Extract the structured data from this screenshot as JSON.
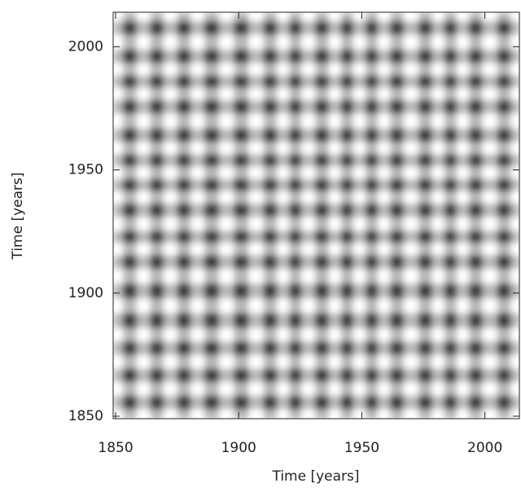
{
  "chart_data": {
    "type": "heatmap",
    "x_label": "Time [years]",
    "y_label": "Time [years]",
    "x": [
      1850,
      1856,
      1861,
      1867,
      1872,
      1878,
      1883,
      1889,
      1895,
      1901,
      1907,
      1913,
      1918,
      1923,
      1928,
      1934,
      1939,
      1944,
      1949,
      1954,
      1959,
      1964,
      1970,
      1976,
      1981,
      1986,
      1991,
      1996,
      2002,
      2008,
      2013
    ],
    "y": [
      1850,
      1856,
      1861,
      1867,
      1872,
      1878,
      1883,
      1889,
      1895,
      1901,
      1907,
      1913,
      1918,
      1923,
      1928,
      1934,
      1939,
      1944,
      1949,
      1954,
      1959,
      1964,
      1970,
      1976,
      1981,
      1986,
      1991,
      1996,
      2002,
      2008,
      2013
    ],
    "values": [
      [
        0,
        3,
        0,
        3,
        0,
        3,
        0,
        3,
        0,
        3,
        0,
        3,
        0,
        3,
        0,
        3,
        0,
        3,
        0,
        3,
        0,
        3,
        0,
        3,
        0,
        3,
        0,
        3,
        0,
        3,
        0
      ],
      [
        3,
        8,
        3,
        8,
        3,
        8,
        3,
        8,
        3,
        8,
        3,
        8,
        3,
        8,
        3,
        8,
        3,
        8,
        3,
        8,
        3,
        8,
        3,
        8,
        3,
        8,
        3,
        8,
        3,
        8,
        3
      ],
      [
        0,
        3,
        0,
        3,
        0,
        3,
        0,
        3,
        0,
        3,
        0,
        3,
        0,
        3,
        0,
        3,
        0,
        3,
        0,
        3,
        0,
        3,
        0,
        3,
        0,
        3,
        0,
        3,
        0,
        3,
        0
      ],
      [
        3,
        8,
        3,
        8,
        3,
        8,
        3,
        8,
        3,
        8,
        3,
        8,
        3,
        8,
        3,
        8,
        3,
        8,
        3,
        8,
        3,
        8,
        3,
        8,
        3,
        8,
        3,
        8,
        3,
        8,
        3
      ],
      [
        0,
        3,
        0,
        3,
        0,
        3,
        0,
        3,
        0,
        3,
        0,
        3,
        0,
        3,
        0,
        3,
        0,
        3,
        0,
        3,
        0,
        3,
        0,
        3,
        0,
        3,
        0,
        3,
        0,
        3,
        0
      ],
      [
        3,
        8,
        3,
        8,
        3,
        8,
        3,
        8,
        3,
        8,
        3,
        8,
        3,
        8,
        3,
        8,
        3,
        8,
        3,
        8,
        3,
        8,
        3,
        8,
        3,
        8,
        3,
        8,
        3,
        8,
        3
      ],
      [
        0,
        3,
        0,
        3,
        0,
        3,
        0,
        3,
        0,
        3,
        0,
        3,
        0,
        3,
        0,
        3,
        0,
        3,
        0,
        3,
        0,
        3,
        0,
        3,
        0,
        3,
        0,
        3,
        0,
        3,
        0
      ],
      [
        3,
        8,
        3,
        8,
        3,
        8,
        3,
        8,
        3,
        8,
        3,
        8,
        3,
        8,
        3,
        8,
        3,
        8,
        3,
        8,
        3,
        8,
        3,
        8,
        3,
        8,
        3,
        8,
        3,
        8,
        3
      ],
      [
        0,
        3,
        0,
        3,
        0,
        3,
        0,
        3,
        0,
        3,
        0,
        3,
        0,
        3,
        0,
        3,
        0,
        3,
        0,
        3,
        0,
        3,
        0,
        3,
        0,
        3,
        0,
        3,
        0,
        3,
        0
      ],
      [
        3,
        8,
        3,
        8,
        3,
        8,
        3,
        8,
        3,
        8,
        3,
        8,
        3,
        8,
        3,
        8,
        3,
        8,
        3,
        8,
        3,
        8,
        3,
        8,
        3,
        8,
        3,
        8,
        3,
        8,
        3
      ],
      [
        0,
        3,
        0,
        3,
        0,
        3,
        0,
        3,
        0,
        3,
        0,
        3,
        0,
        3,
        0,
        3,
        0,
        3,
        0,
        3,
        0,
        3,
        0,
        3,
        0,
        3,
        0,
        3,
        0,
        3,
        0
      ],
      [
        3,
        8,
        3,
        8,
        3,
        8,
        3,
        8,
        3,
        8,
        3,
        8,
        3,
        8,
        3,
        8,
        3,
        8,
        3,
        8,
        3,
        8,
        3,
        8,
        3,
        8,
        3,
        8,
        3,
        8,
        3
      ],
      [
        0,
        3,
        0,
        3,
        0,
        3,
        0,
        3,
        0,
        3,
        0,
        3,
        0,
        3,
        0,
        3,
        0,
        3,
        0,
        3,
        0,
        3,
        0,
        3,
        0,
        3,
        0,
        3,
        0,
        3,
        0
      ],
      [
        3,
        8,
        3,
        8,
        3,
        8,
        3,
        8,
        3,
        8,
        3,
        8,
        3,
        8,
        3,
        8,
        3,
        8,
        3,
        8,
        3,
        8,
        3,
        8,
        3,
        8,
        3,
        8,
        3,
        8,
        3
      ],
      [
        0,
        3,
        0,
        3,
        0,
        3,
        0,
        3,
        0,
        3,
        0,
        3,
        0,
        3,
        0,
        3,
        0,
        3,
        0,
        3,
        0,
        3,
        0,
        3,
        0,
        3,
        0,
        3,
        0,
        3,
        0
      ],
      [
        3,
        8,
        3,
        8,
        3,
        8,
        3,
        8,
        3,
        8,
        3,
        8,
        3,
        8,
        3,
        8,
        3,
        8,
        3,
        8,
        3,
        8,
        3,
        8,
        3,
        8,
        3,
        8,
        3,
        8,
        3
      ],
      [
        0,
        3,
        0,
        3,
        0,
        3,
        0,
        3,
        0,
        3,
        0,
        3,
        0,
        3,
        0,
        3,
        0,
        3,
        0,
        3,
        0,
        3,
        0,
        3,
        0,
        3,
        0,
        3,
        0,
        3,
        0
      ],
      [
        3,
        8,
        3,
        8,
        3,
        8,
        3,
        8,
        3,
        8,
        3,
        8,
        3,
        8,
        3,
        8,
        3,
        8,
        3,
        8,
        3,
        8,
        3,
        8,
        3,
        8,
        3,
        8,
        3,
        8,
        3
      ],
      [
        0,
        3,
        0,
        3,
        0,
        3,
        0,
        3,
        0,
        3,
        0,
        3,
        0,
        3,
        0,
        3,
        0,
        3,
        0,
        3,
        0,
        3,
        0,
        3,
        0,
        3,
        0,
        3,
        0,
        3,
        0
      ],
      [
        3,
        8,
        3,
        8,
        3,
        8,
        3,
        8,
        3,
        8,
        3,
        8,
        3,
        8,
        3,
        8,
        3,
        8,
        3,
        8,
        3,
        8,
        3,
        8,
        3,
        8,
        3,
        8,
        3,
        8,
        3
      ],
      [
        0,
        3,
        0,
        3,
        0,
        3,
        0,
        3,
        0,
        3,
        0,
        3,
        0,
        3,
        0,
        3,
        0,
        3,
        0,
        3,
        0,
        3,
        0,
        3,
        0,
        3,
        0,
        3,
        0,
        3,
        0
      ],
      [
        3,
        8,
        3,
        8,
        3,
        8,
        3,
        8,
        3,
        8,
        3,
        8,
        3,
        8,
        3,
        8,
        3,
        8,
        3,
        8,
        3,
        8,
        3,
        8,
        3,
        8,
        3,
        8,
        3,
        8,
        3
      ],
      [
        0,
        3,
        0,
        3,
        0,
        3,
        0,
        3,
        0,
        3,
        0,
        3,
        0,
        3,
        0,
        3,
        0,
        3,
        0,
        3,
        0,
        3,
        0,
        3,
        0,
        3,
        0,
        3,
        0,
        3,
        0
      ],
      [
        3,
        8,
        3,
        8,
        3,
        8,
        3,
        8,
        3,
        8,
        3,
        8,
        3,
        8,
        3,
        8,
        3,
        8,
        3,
        8,
        3,
        8,
        3,
        8,
        3,
        8,
        3,
        8,
        3,
        8,
        3
      ],
      [
        0,
        3,
        0,
        3,
        0,
        3,
        0,
        3,
        0,
        3,
        0,
        3,
        0,
        3,
        0,
        3,
        0,
        3,
        0,
        3,
        0,
        3,
        0,
        3,
        0,
        3,
        0,
        3,
        0,
        3,
        0
      ],
      [
        3,
        8,
        3,
        8,
        3,
        8,
        3,
        8,
        3,
        8,
        3,
        8,
        3,
        8,
        3,
        8,
        3,
        8,
        3,
        8,
        3,
        8,
        3,
        8,
        3,
        8,
        3,
        8,
        3,
        8,
        3
      ],
      [
        0,
        3,
        0,
        3,
        0,
        3,
        0,
        3,
        0,
        3,
        0,
        3,
        0,
        3,
        0,
        3,
        0,
        3,
        0,
        3,
        0,
        3,
        0,
        3,
        0,
        3,
        0,
        3,
        0,
        3,
        0
      ],
      [
        3,
        8,
        3,
        8,
        3,
        8,
        3,
        8,
        3,
        8,
        3,
        8,
        3,
        8,
        3,
        8,
        3,
        8,
        3,
        8,
        3,
        8,
        3,
        8,
        3,
        8,
        3,
        8,
        3,
        8,
        3
      ],
      [
        0,
        3,
        0,
        3,
        0,
        3,
        0,
        3,
        0,
        3,
        0,
        3,
        0,
        3,
        0,
        3,
        0,
        3,
        0,
        3,
        0,
        3,
        0,
        3,
        0,
        3,
        0,
        3,
        0,
        3,
        0
      ],
      [
        3,
        8,
        3,
        8,
        3,
        8,
        3,
        8,
        3,
        8,
        3,
        8,
        3,
        8,
        3,
        8,
        3,
        8,
        3,
        8,
        3,
        8,
        3,
        8,
        3,
        8,
        3,
        8,
        3,
        8,
        3
      ],
      [
        0,
        3,
        0,
        3,
        0,
        3,
        0,
        3,
        0,
        3,
        0,
        3,
        0,
        3,
        0,
        3,
        0,
        3,
        0,
        3,
        0,
        3,
        0,
        3,
        0,
        3,
        0,
        3,
        0,
        3,
        0
      ]
    ],
    "vmax": 9,
    "xlim": [
      1849,
      2014
    ],
    "ylim": [
      1849,
      2014
    ],
    "xticks": [
      1850,
      1900,
      1950,
      2000
    ],
    "yticks": [
      1850,
      1900,
      1950,
      2000
    ]
  }
}
